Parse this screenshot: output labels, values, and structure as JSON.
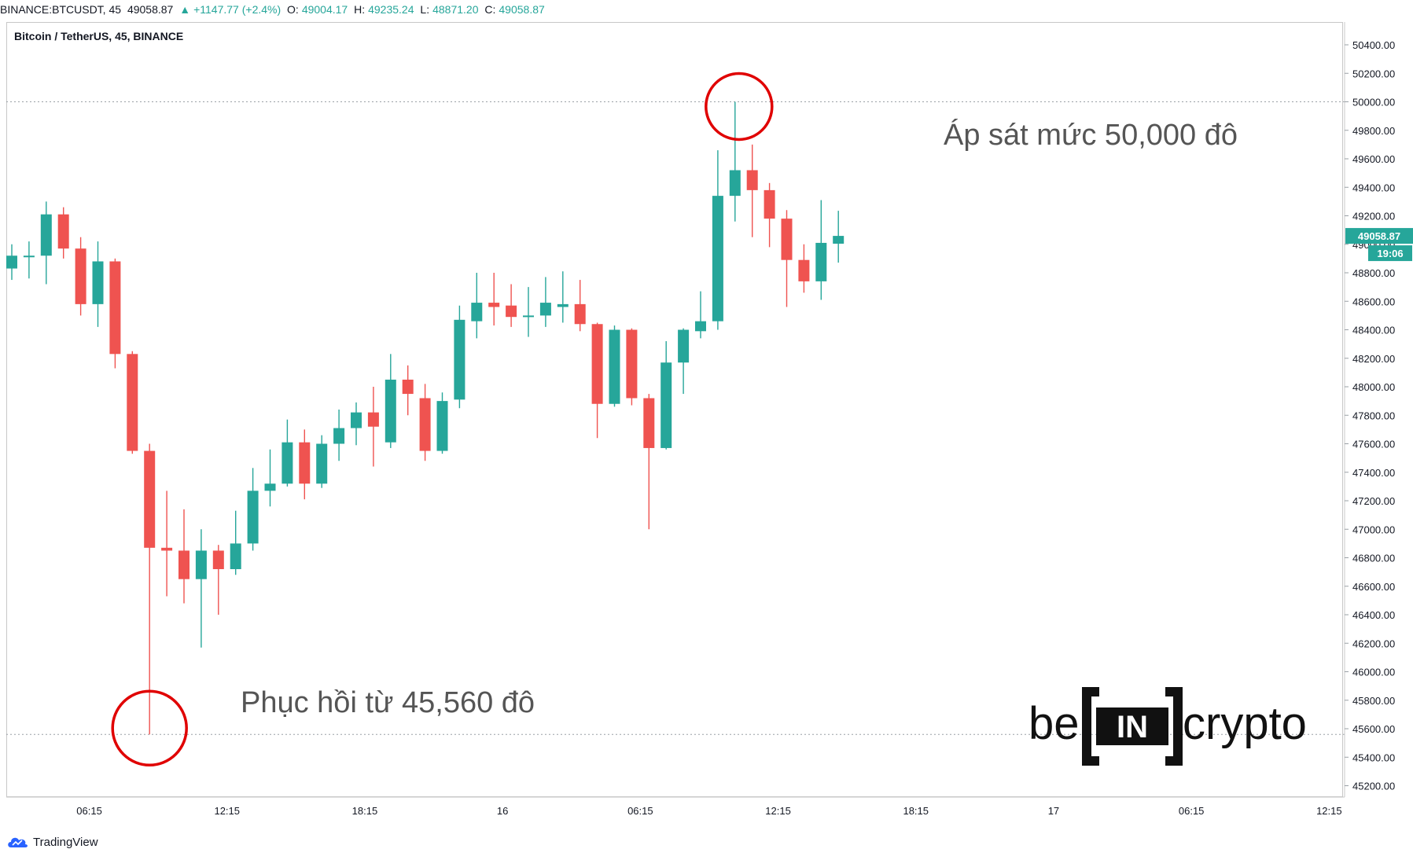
{
  "header": {
    "symbol": "BINANCE:BTCUSDT, 45",
    "price": "49058.87",
    "change": "+1147.77 (+2.4%)",
    "o_label": "O:",
    "o_value": "49004.17",
    "h_label": "H:",
    "h_value": "49235.24",
    "l_label": "L:",
    "l_value": "48871.20",
    "c_label": "C:",
    "c_value": "49058.87"
  },
  "legend": "Bitcoin / TetherUS, 45, BINANCE",
  "annotations": {
    "top": "Áp sát mức 50,000 đô",
    "bottom": "Phục hồi từ 45,560 đô"
  },
  "price_tag": {
    "price": "49058.87",
    "timer": "19:06"
  },
  "logo": {
    "left": "be",
    "box": "IN",
    "right": "crypto"
  },
  "footer": {
    "brand": "TradingView"
  },
  "colors": {
    "up": "#26a69a",
    "down": "#ef5350",
    "circle": "#e00000"
  },
  "chart_data": {
    "type": "candlestick",
    "ylim": [
      45120,
      50560
    ],
    "yticks": [
      45200,
      45400,
      45600,
      45800,
      46000,
      46200,
      46400,
      46600,
      46800,
      47000,
      47200,
      47400,
      47600,
      47800,
      48000,
      48200,
      48400,
      48600,
      48800,
      49000,
      49200,
      49400,
      49600,
      49800,
      50000,
      50200,
      50400
    ],
    "xticks": [
      {
        "i": 4.5,
        "label": "06:15"
      },
      {
        "i": 12.5,
        "label": "12:15"
      },
      {
        "i": 20.5,
        "label": "18:15"
      },
      {
        "i": 28.5,
        "label": "16"
      },
      {
        "i": 36.5,
        "label": "06:15"
      },
      {
        "i": 44.5,
        "label": "12:15"
      },
      {
        "i": 52.5,
        "label": "18:15"
      },
      {
        "i": 60.5,
        "label": "17"
      },
      {
        "i": 68.5,
        "label": "06:15"
      },
      {
        "i": 76.5,
        "label": "12:15"
      }
    ],
    "x_count": 78,
    "reference_lines": [
      50000,
      45560
    ],
    "candles": [
      {
        "o": 48830,
        "h": 49000,
        "l": 48750,
        "c": 48920
      },
      {
        "o": 48920,
        "h": 49020,
        "l": 48760,
        "c": 48920
      },
      {
        "o": 48920,
        "h": 49300,
        "l": 48720,
        "c": 49210
      },
      {
        "o": 49210,
        "h": 49260,
        "l": 48900,
        "c": 48970
      },
      {
        "o": 48970,
        "h": 49050,
        "l": 48500,
        "c": 48580
      },
      {
        "o": 48580,
        "h": 49020,
        "l": 48420,
        "c": 48880
      },
      {
        "o": 48880,
        "h": 48900,
        "l": 48130,
        "c": 48230
      },
      {
        "o": 48230,
        "h": 48250,
        "l": 47530,
        "c": 47550
      },
      {
        "o": 47550,
        "h": 47600,
        "l": 45560,
        "c": 46870
      },
      {
        "o": 46870,
        "h": 47270,
        "l": 46530,
        "c": 46850
      },
      {
        "o": 46850,
        "h": 47140,
        "l": 46480,
        "c": 46650
      },
      {
        "o": 46650,
        "h": 47000,
        "l": 46170,
        "c": 46850
      },
      {
        "o": 46850,
        "h": 46890,
        "l": 46400,
        "c": 46720
      },
      {
        "o": 46720,
        "h": 47130,
        "l": 46680,
        "c": 46900
      },
      {
        "o": 46900,
        "h": 47430,
        "l": 46850,
        "c": 47270
      },
      {
        "o": 47270,
        "h": 47560,
        "l": 47160,
        "c": 47320
      },
      {
        "o": 47320,
        "h": 47770,
        "l": 47300,
        "c": 47610
      },
      {
        "o": 47610,
        "h": 47700,
        "l": 47210,
        "c": 47320
      },
      {
        "o": 47320,
        "h": 47660,
        "l": 47290,
        "c": 47600
      },
      {
        "o": 47600,
        "h": 47840,
        "l": 47480,
        "c": 47710
      },
      {
        "o": 47710,
        "h": 47890,
        "l": 47590,
        "c": 47820
      },
      {
        "o": 47820,
        "h": 48000,
        "l": 47440,
        "c": 47720
      },
      {
        "o": 47610,
        "h": 48230,
        "l": 47570,
        "c": 48050
      },
      {
        "o": 48050,
        "h": 48150,
        "l": 47800,
        "c": 47950
      },
      {
        "o": 47920,
        "h": 48020,
        "l": 47480,
        "c": 47550
      },
      {
        "o": 47550,
        "h": 47960,
        "l": 47530,
        "c": 47900
      },
      {
        "o": 47910,
        "h": 48570,
        "l": 47850,
        "c": 48470
      },
      {
        "o": 48460,
        "h": 48800,
        "l": 48340,
        "c": 48590
      },
      {
        "o": 48590,
        "h": 48800,
        "l": 48430,
        "c": 48560
      },
      {
        "o": 48570,
        "h": 48720,
        "l": 48420,
        "c": 48490
      },
      {
        "o": 48490,
        "h": 48700,
        "l": 48350,
        "c": 48500
      },
      {
        "o": 48500,
        "h": 48770,
        "l": 48420,
        "c": 48590
      },
      {
        "o": 48560,
        "h": 48810,
        "l": 48450,
        "c": 48580
      },
      {
        "o": 48580,
        "h": 48750,
        "l": 48390,
        "c": 48440
      },
      {
        "o": 48440,
        "h": 48450,
        "l": 47640,
        "c": 47880
      },
      {
        "o": 47880,
        "h": 48430,
        "l": 47860,
        "c": 48400
      },
      {
        "o": 48400,
        "h": 48410,
        "l": 47870,
        "c": 47920
      },
      {
        "o": 47920,
        "h": 47950,
        "l": 47000,
        "c": 47570
      },
      {
        "o": 47570,
        "h": 48320,
        "l": 47560,
        "c": 48170
      },
      {
        "o": 48170,
        "h": 48410,
        "l": 47950,
        "c": 48400
      },
      {
        "o": 48390,
        "h": 48670,
        "l": 48340,
        "c": 48460
      },
      {
        "o": 48460,
        "h": 49660,
        "l": 48400,
        "c": 49340
      },
      {
        "o": 49340,
        "h": 50000,
        "l": 49160,
        "c": 49520
      },
      {
        "o": 49520,
        "h": 49700,
        "l": 49050,
        "c": 49380
      },
      {
        "o": 49380,
        "h": 49430,
        "l": 48980,
        "c": 49180
      },
      {
        "o": 49180,
        "h": 49240,
        "l": 48560,
        "c": 48890
      },
      {
        "o": 48890,
        "h": 49000,
        "l": 48660,
        "c": 48740
      },
      {
        "o": 48740,
        "h": 49310,
        "l": 48610,
        "c": 49010
      },
      {
        "o": 49004.17,
        "h": 49235.24,
        "l": 48871.2,
        "c": 49058.87
      }
    ]
  }
}
